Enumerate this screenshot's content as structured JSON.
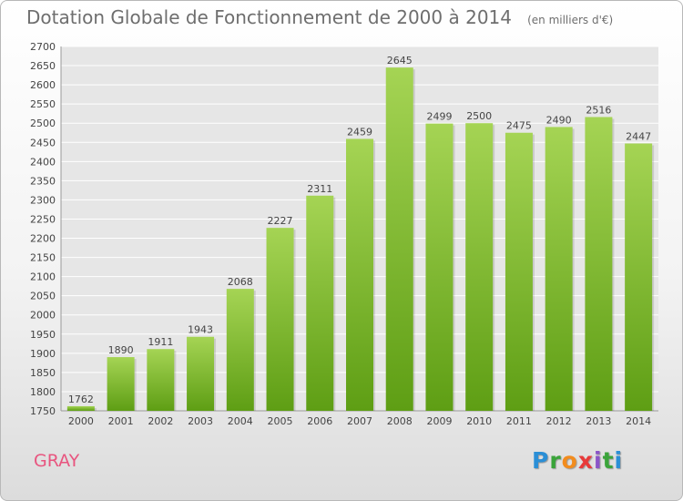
{
  "header": {
    "title": "Dotation Globale de Fonctionnement de 2000 à 2014",
    "unit": "(en milliers d'€)"
  },
  "footer": {
    "commune": "GRAY",
    "brand_letters": [
      "P",
      "r",
      "o",
      "x",
      "i",
      "t",
      "i"
    ],
    "brand_colors": [
      "#2b8fd6",
      "#3aa43a",
      "#f28c1e",
      "#e83a3a",
      "#8a55c8",
      "#3aa43a",
      "#2b8fd6"
    ]
  },
  "colors": {
    "bar_top": "#a5d454",
    "bar_bottom": "#5e9e14",
    "grid": "#ffffff",
    "label": "#444444",
    "commune": "#e8557f"
  },
  "chart_data": {
    "type": "bar",
    "categories": [
      "2000",
      "2001",
      "2002",
      "2003",
      "2004",
      "2005",
      "2006",
      "2007",
      "2008",
      "2009",
      "2010",
      "2011",
      "2012",
      "2013",
      "2014"
    ],
    "values": [
      1762,
      1890,
      1911,
      1943,
      2068,
      2227,
      2311,
      2459,
      2645,
      2499,
      2500,
      2475,
      2490,
      2516,
      2447
    ],
    "title": "Dotation Globale de Fonctionnement de 2000 à 2014",
    "subtitle": "(en milliers d'€)",
    "ylim": [
      1750,
      2700
    ],
    "ytick_step": 50,
    "grid": true
  }
}
